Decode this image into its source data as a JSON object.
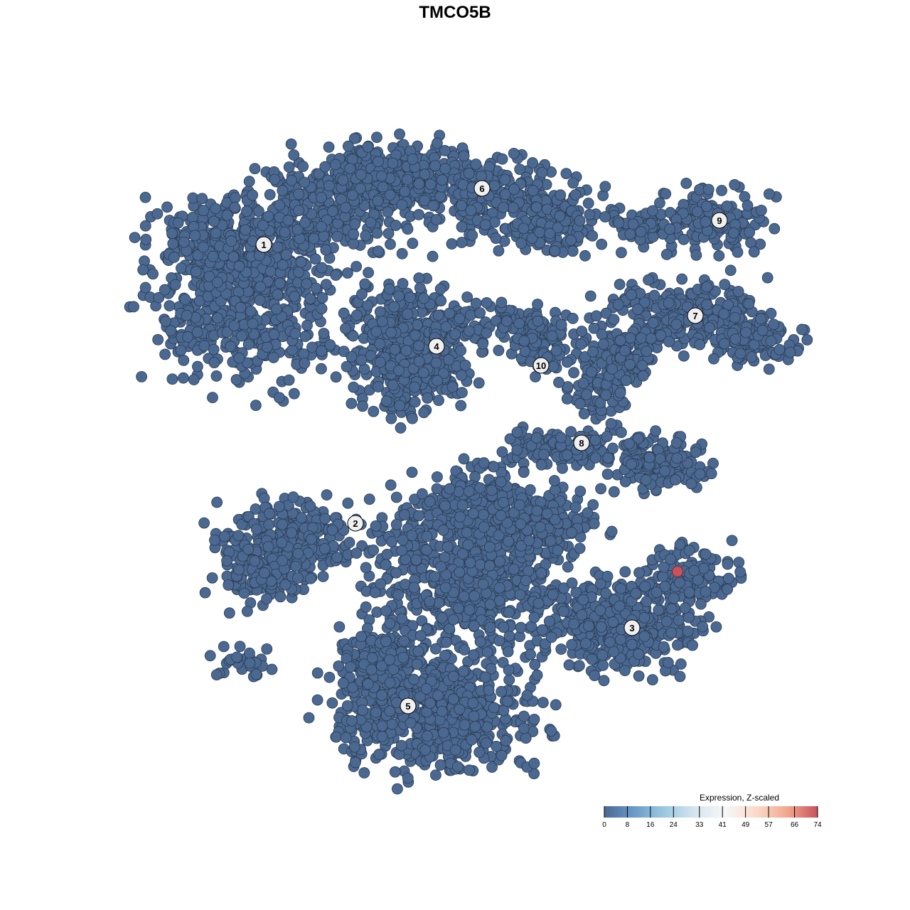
{
  "chart_data": {
    "type": "scatter",
    "title": "TMCO5B",
    "xlabel": "",
    "ylabel": "",
    "grid": false,
    "cluster_labels": [
      "1",
      "2",
      "3",
      "4",
      "5",
      "6",
      "7",
      "8",
      "9",
      "10"
    ],
    "point_color_default": "#4a6890",
    "highlighted_point": {
      "cluster": "3",
      "color": "#c8525e",
      "value_approx": 74
    },
    "legend": {
      "title": "Expression, Z-scaled",
      "placement": "bottom-right",
      "ticks": [
        "0",
        "8",
        "16",
        "24",
        "33",
        "41",
        "49",
        "57",
        "66",
        "74"
      ],
      "range": [
        0,
        74
      ],
      "colors": [
        "#4a6890",
        "#6a9ccb",
        "#9ecae1",
        "#d6e6f0",
        "#f7f7f7",
        "#fbd9c9",
        "#f2a88e",
        "#c8525e"
      ]
    }
  }
}
